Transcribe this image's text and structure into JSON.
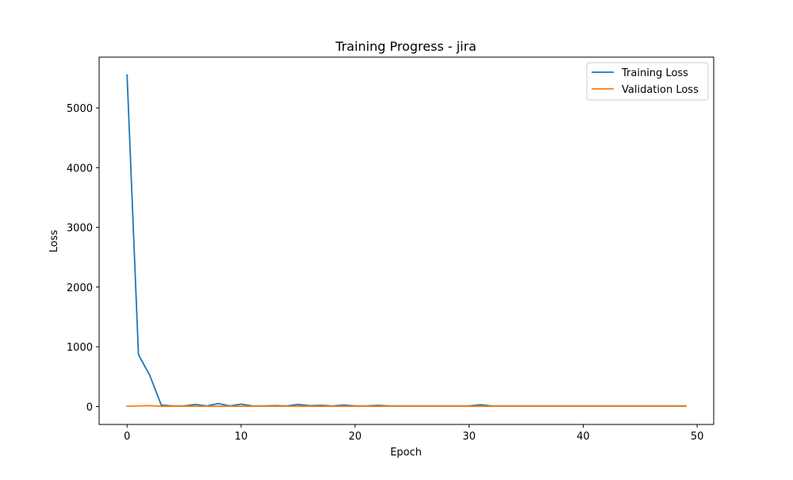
{
  "chart_data": {
    "type": "line",
    "title": "Training Progress - jira",
    "xlabel": "Epoch",
    "ylabel": "Loss",
    "xlim": [
      -2.45,
      51.45
    ],
    "ylim": [
      -300,
      5850
    ],
    "xticks": [
      0,
      10,
      20,
      30,
      40,
      50
    ],
    "yticks": [
      0,
      1000,
      2000,
      3000,
      4000,
      5000
    ],
    "grid": false,
    "legend_position": "top-right",
    "x": [
      0,
      1,
      2,
      3,
      4,
      5,
      6,
      7,
      8,
      9,
      10,
      11,
      12,
      13,
      14,
      15,
      16,
      17,
      18,
      19,
      20,
      21,
      22,
      23,
      24,
      25,
      26,
      27,
      28,
      29,
      30,
      31,
      32,
      33,
      34,
      35,
      36,
      37,
      38,
      39,
      40,
      41,
      42,
      43,
      44,
      45,
      46,
      47,
      48,
      49
    ],
    "series": [
      {
        "name": "Training Loss",
        "color": "#1f77b4",
        "values": [
          5550,
          870,
          520,
          25,
          10,
          10,
          35,
          10,
          50,
          10,
          40,
          10,
          10,
          15,
          10,
          35,
          15,
          20,
          10,
          25,
          10,
          10,
          20,
          10,
          10,
          10,
          10,
          10,
          10,
          10,
          10,
          30,
          10,
          10,
          10,
          10,
          10,
          10,
          10,
          10,
          10,
          10,
          10,
          10,
          10,
          10,
          10,
          10,
          10,
          10
        ]
      },
      {
        "name": "Validation Loss",
        "color": "#ff7f0e",
        "values": [
          5,
          10,
          15,
          5,
          5,
          5,
          5,
          5,
          5,
          5,
          5,
          5,
          5,
          5,
          5,
          5,
          5,
          5,
          5,
          5,
          5,
          5,
          5,
          5,
          5,
          5,
          5,
          5,
          5,
          5,
          5,
          5,
          5,
          5,
          5,
          5,
          5,
          5,
          5,
          5,
          5,
          5,
          5,
          5,
          5,
          5,
          5,
          5,
          5,
          5
        ]
      }
    ]
  }
}
